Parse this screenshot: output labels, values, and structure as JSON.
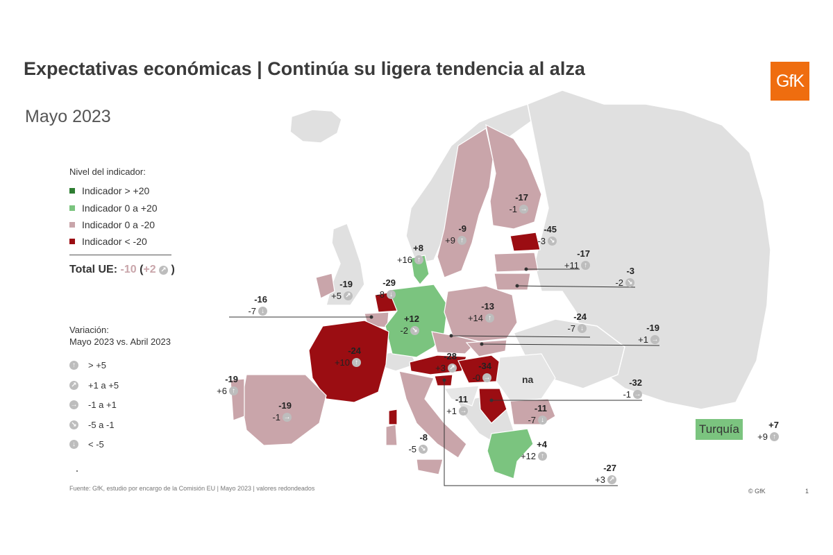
{
  "title": "Expectativas económicas | Continúa su ligera tendencia al alza",
  "subtitle": "Mayo 2023",
  "logo": "GfK",
  "legend": {
    "title": "Nivel del indicador:",
    "items": [
      {
        "label": "Indicador > +20",
        "color": "#2e7d32"
      },
      {
        "label": "Indicador 0 a +20",
        "color": "#7bc47f"
      },
      {
        "label": "Indicador 0 a -20",
        "color": "#c9a5aa"
      },
      {
        "label": "Indicador < -20",
        "color": "#9b0d12"
      }
    ]
  },
  "total": {
    "label": "Total UE:",
    "value": "-10",
    "open": "(",
    "change": "+2",
    "close": ")"
  },
  "variation": {
    "title_line1": "Variación:",
    "title_line2": "Mayo 2023 vs. Abril 2023",
    "items": [
      {
        "label": "> +5",
        "icon": "up-arrow-icon",
        "glyph": "↑"
      },
      {
        "label": "+1 a +5",
        "icon": "up-right-arrow-icon",
        "glyph": "↗"
      },
      {
        "label": "-1 a +1",
        "icon": "right-arrow-icon",
        "glyph": "→"
      },
      {
        "label": "-5 a -1",
        "icon": "down-right-arrow-icon",
        "glyph": "↘"
      },
      {
        "label": "< -5",
        "icon": "down-arrow-icon",
        "glyph": "↓"
      }
    ]
  },
  "source": "Fuente: GfK, estudio por encargo de la Comisión  EU  | Mayo 2023 | valores redondeados",
  "copyright": "© GfK",
  "page_number": "1",
  "turkey_label": "Turquía",
  "na_label": "na",
  "countries": [
    {
      "id": "finland",
      "value": "-17",
      "change": "-1",
      "glyph": "→"
    },
    {
      "id": "sweden",
      "value": "-9",
      "change": "+9",
      "glyph": "↑"
    },
    {
      "id": "estonia",
      "value": "-45",
      "change": "-3",
      "glyph": "↘"
    },
    {
      "id": "latvia",
      "value": "-17",
      "change": "+11",
      "glyph": "↑"
    },
    {
      "id": "lithuania",
      "value": "-3",
      "change": "-2",
      "glyph": "↘"
    },
    {
      "id": "denmark",
      "value": "+8",
      "change": "+16",
      "glyph": "↑"
    },
    {
      "id": "ireland",
      "value": "-19",
      "change": "+5",
      "glyph": "↗"
    },
    {
      "id": "netherlands",
      "value": "-29",
      "change": "-8",
      "glyph": "↓"
    },
    {
      "id": "belgium",
      "value": "-16",
      "change": "-7",
      "glyph": "↓"
    },
    {
      "id": "germany",
      "value": "+12",
      "change": "-2",
      "glyph": "↘"
    },
    {
      "id": "poland",
      "value": "-13",
      "change": "+14",
      "glyph": "↑"
    },
    {
      "id": "czechia",
      "value": "-24",
      "change": "-7",
      "glyph": "↓"
    },
    {
      "id": "slovakia",
      "value": "-19",
      "change": "+1",
      "glyph": "→"
    },
    {
      "id": "france",
      "value": "-24",
      "change": "+10",
      "glyph": "↑"
    },
    {
      "id": "austria",
      "value": "-28",
      "change": "+3",
      "glyph": "↗"
    },
    {
      "id": "hungary",
      "value": "-34",
      "change": "-0",
      "glyph": "→"
    },
    {
      "id": "romania",
      "value": "-32",
      "change": "-1",
      "glyph": "→"
    },
    {
      "id": "portugal",
      "value": "-19",
      "change": "+6",
      "glyph": "↑"
    },
    {
      "id": "spain",
      "value": "-19",
      "change": "-1",
      "glyph": "→"
    },
    {
      "id": "croatia",
      "value": "-11",
      "change": "+1",
      "glyph": "→"
    },
    {
      "id": "bulgaria",
      "value": "-11",
      "change": "-7",
      "glyph": "↓"
    },
    {
      "id": "italy",
      "value": "-8",
      "change": "-5",
      "glyph": "↘"
    },
    {
      "id": "greece",
      "value": "+4",
      "change": "+12",
      "glyph": "↑"
    },
    {
      "id": "slovenia",
      "value": "-27",
      "change": "+3",
      "glyph": "↗"
    },
    {
      "id": "turkey",
      "value": "+7",
      "change": "+9",
      "glyph": "↑"
    }
  ]
}
